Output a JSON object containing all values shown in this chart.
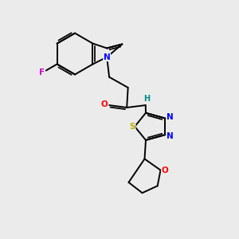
{
  "background_color": "#ebebeb",
  "figsize": [
    3.0,
    3.0
  ],
  "dpi": 100,
  "atom_colors": {
    "N": "#0000ff",
    "O": "#ff0000",
    "F": "#cc00cc",
    "S": "#bbaa00",
    "H": "#008888",
    "C": "#000000"
  },
  "bond_color": "#000000",
  "bond_width": 1.4
}
